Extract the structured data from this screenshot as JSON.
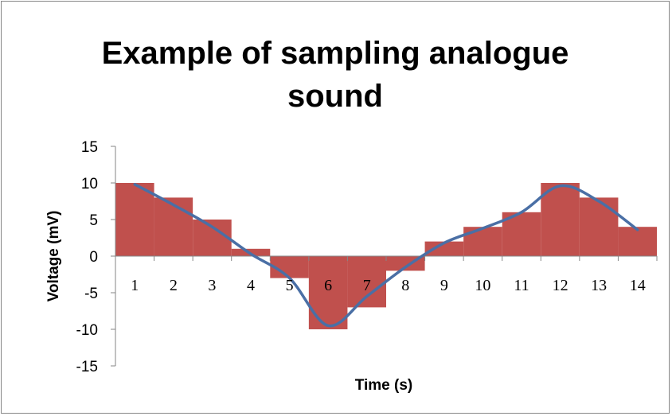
{
  "chart_data": {
    "type": "bar",
    "title": "Example of sampling analogue sound",
    "title_lines": [
      "Example of sampling analogue",
      "sound"
    ],
    "xlabel": "Time (s)",
    "ylabel": "Voltage (mV)",
    "categories": [
      "1",
      "2",
      "3",
      "4",
      "5",
      "6",
      "7",
      "8",
      "9",
      "10",
      "11",
      "12",
      "13",
      "14"
    ],
    "series": [
      {
        "type": "bar",
        "values": [
          10,
          8,
          5,
          1,
          -3,
          -10,
          -7,
          -2,
          2,
          4,
          6,
          10,
          8,
          4
        ],
        "color": "#c0504d"
      },
      {
        "type": "line",
        "smooth": true,
        "values": [
          9.8,
          7,
          4,
          0.3,
          -3,
          -9.5,
          -5.5,
          -1.5,
          1.8,
          3.8,
          6,
          9.6,
          7.5,
          3.6
        ],
        "color": "#4a6fa5"
      }
    ],
    "ylim": [
      -15,
      15
    ],
    "yticks": [
      "15",
      "10",
      "5",
      "0",
      "-5",
      "-10",
      "-15"
    ],
    "ytick_values": [
      15,
      10,
      5,
      0,
      -5,
      -10,
      -15
    ],
    "grid": false,
    "legend": "none",
    "axis_color": "#868686"
  }
}
